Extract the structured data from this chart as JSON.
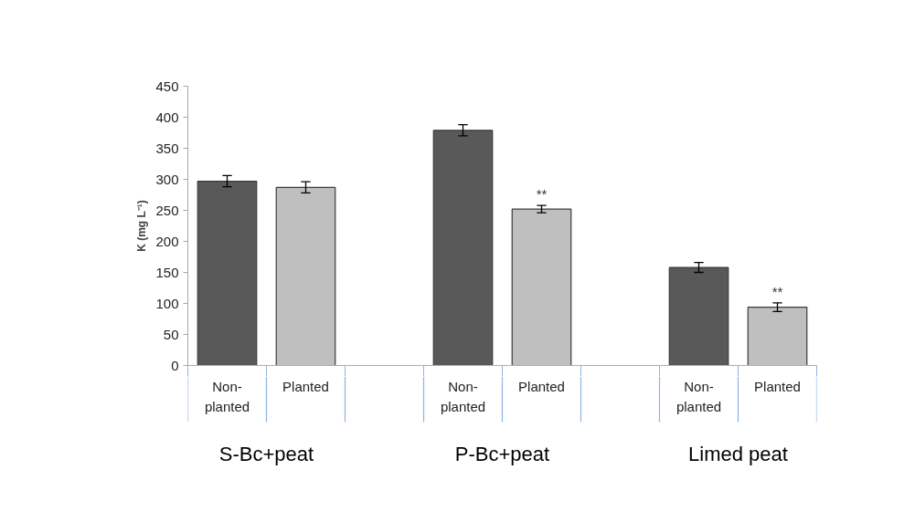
{
  "chart_data": {
    "type": "bar",
    "ylabel": "K (mg L⁻¹)",
    "categories": [
      "Non-planted",
      "Planted",
      null,
      "Non-planted",
      "Planted",
      null,
      "Non-planted",
      "Planted"
    ],
    "values": [
      297,
      287,
      null,
      379,
      252,
      null,
      158,
      94
    ],
    "errors": [
      9,
      9,
      null,
      9,
      6,
      null,
      8,
      7
    ],
    "colors": [
      "#595959",
      "#bfbfbf",
      "#ffffff",
      "#595959",
      "#bfbfbf",
      "#ffffff",
      "#595959",
      "#bfbfbf"
    ],
    "value_labels": [
      null,
      null,
      null,
      null,
      "**",
      null,
      null,
      "**"
    ],
    "annotations": [
      "S-Bc+peat",
      "P-Bc+peat",
      "Limed peat"
    ],
    "ylim": [
      0,
      450
    ],
    "yticks": [
      0,
      50,
      100,
      150,
      200,
      250,
      300,
      350,
      400,
      450
    ],
    "grid": false
  }
}
